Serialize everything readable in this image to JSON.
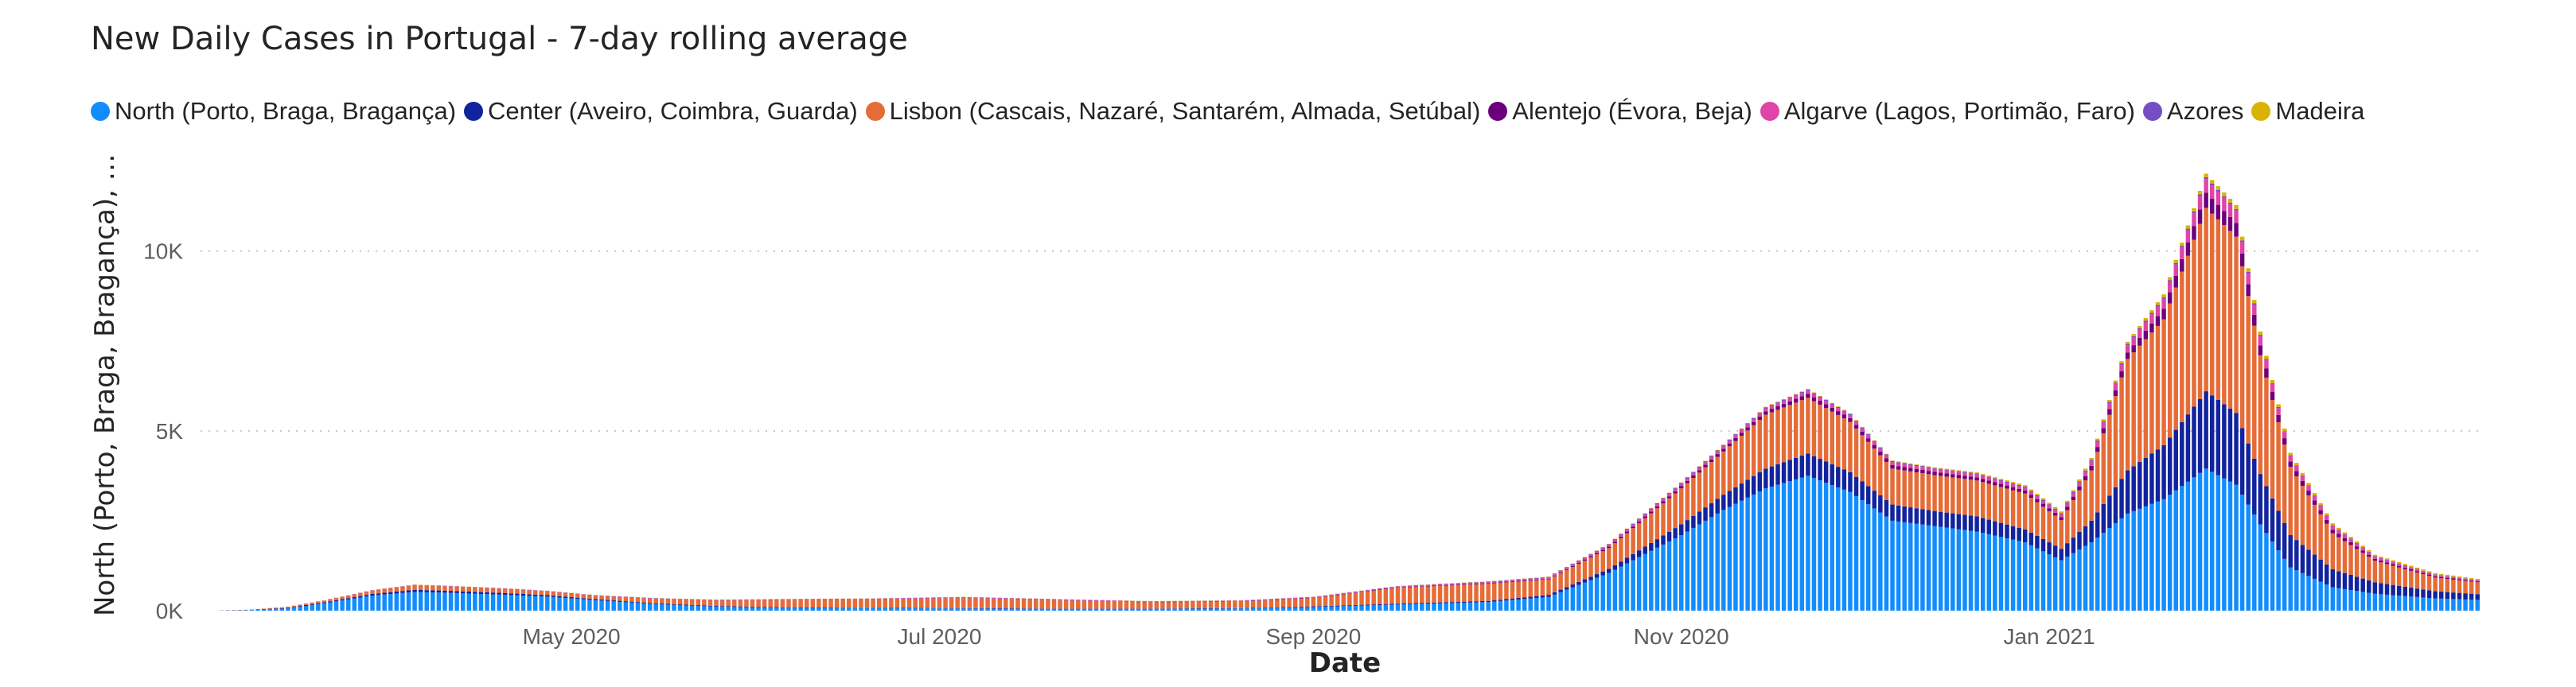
{
  "chart_data": {
    "type": "bar",
    "stacked": true,
    "title": "New Daily Cases in Portugal - 7-day rolling average",
    "xlabel": "Date",
    "ylabel": "North (Porto, Braga, Bragança), Cen...",
    "ylim": [
      0,
      13000
    ],
    "grid": true,
    "legend_position": "top",
    "x_range": [
      "2020-03-01",
      "2021-03-13"
    ],
    "x_ticks": [
      {
        "date": "2020-05-01",
        "label": "May 2020"
      },
      {
        "date": "2020-07-01",
        "label": "Jul 2020"
      },
      {
        "date": "2020-09-01",
        "label": "Sep 2020"
      },
      {
        "date": "2020-11-01",
        "label": "Nov 2020"
      },
      {
        "date": "2021-01-01",
        "label": "Jan 2021"
      }
    ],
    "y_ticks": [
      {
        "value": 0,
        "label": "0K"
      },
      {
        "value": 5000,
        "label": "5K"
      },
      {
        "value": 10000,
        "label": "10K"
      }
    ],
    "series": [
      {
        "name": "North (Porto, Braga, Bragança)",
        "color": "#118DFF",
        "points": [
          [
            "2020-03-01",
            0
          ],
          [
            "2020-03-08",
            10
          ],
          [
            "2020-03-15",
            60
          ],
          [
            "2020-03-22",
            230
          ],
          [
            "2020-03-29",
            420
          ],
          [
            "2020-04-05",
            520
          ],
          [
            "2020-04-10",
            500
          ],
          [
            "2020-04-20",
            440
          ],
          [
            "2020-04-27",
            390
          ],
          [
            "2020-05-05",
            290
          ],
          [
            "2020-05-15",
            180
          ],
          [
            "2020-05-25",
            110
          ],
          [
            "2020-06-05",
            80
          ],
          [
            "2020-06-20",
            70
          ],
          [
            "2020-07-05",
            60
          ],
          [
            "2020-07-20",
            50
          ],
          [
            "2020-08-05",
            50
          ],
          [
            "2020-08-20",
            60
          ],
          [
            "2020-09-01",
            100
          ],
          [
            "2020-09-15",
            170
          ],
          [
            "2020-09-30",
            240
          ],
          [
            "2020-10-10",
            380
          ],
          [
            "2020-10-20",
            1050
          ],
          [
            "2020-11-01",
            2100
          ],
          [
            "2020-11-08",
            2800
          ],
          [
            "2020-11-15",
            3400
          ],
          [
            "2020-11-22",
            3750
          ],
          [
            "2020-11-29",
            3300
          ],
          [
            "2020-12-06",
            2500
          ],
          [
            "2020-12-13",
            2350
          ],
          [
            "2020-12-20",
            2200
          ],
          [
            "2020-12-28",
            1900
          ],
          [
            "2021-01-03",
            1400
          ],
          [
            "2021-01-08",
            1900
          ],
          [
            "2021-01-14",
            2700
          ],
          [
            "2021-01-20",
            3100
          ],
          [
            "2021-01-27",
            3950
          ],
          [
            "2021-02-01",
            3500
          ],
          [
            "2021-02-05",
            2400
          ],
          [
            "2021-02-10",
            1200
          ],
          [
            "2021-02-17",
            650
          ],
          [
            "2021-02-24",
            470
          ],
          [
            "2021-03-06",
            340
          ],
          [
            "2021-03-13",
            300
          ]
        ]
      },
      {
        "name": "Center (Aveiro, Coimbra, Guarda)",
        "color": "#12239E",
        "points": [
          [
            "2020-03-01",
            0
          ],
          [
            "2020-03-10",
            10
          ],
          [
            "2020-03-22",
            30
          ],
          [
            "2020-04-05",
            60
          ],
          [
            "2020-04-20",
            50
          ],
          [
            "2020-05-05",
            30
          ],
          [
            "2020-05-25",
            20
          ],
          [
            "2020-06-20",
            10
          ],
          [
            "2020-08-01",
            10
          ],
          [
            "2020-08-20",
            10
          ],
          [
            "2020-09-01",
            20
          ],
          [
            "2020-09-30",
            30
          ],
          [
            "2020-10-10",
            60
          ],
          [
            "2020-10-20",
            110
          ],
          [
            "2020-11-01",
            300
          ],
          [
            "2020-11-15",
            550
          ],
          [
            "2020-11-22",
            620
          ],
          [
            "2020-11-29",
            550
          ],
          [
            "2020-12-06",
            450
          ],
          [
            "2020-12-13",
            420
          ],
          [
            "2020-12-20",
            420
          ],
          [
            "2020-12-28",
            360
          ],
          [
            "2021-01-03",
            320
          ],
          [
            "2021-01-08",
            600
          ],
          [
            "2021-01-14",
            1200
          ],
          [
            "2021-01-20",
            1500
          ],
          [
            "2021-01-27",
            2150
          ],
          [
            "2021-02-01",
            2000
          ],
          [
            "2021-02-05",
            1400
          ],
          [
            "2021-02-10",
            900
          ],
          [
            "2021-02-17",
            500
          ],
          [
            "2021-02-24",
            320
          ],
          [
            "2021-03-06",
            200
          ],
          [
            "2021-03-13",
            160
          ]
        ]
      },
      {
        "name": "Lisbon (Cascais, Nazaré, Santarém, Almada, Setúbal)",
        "color": "#E66C37",
        "points": [
          [
            "2020-03-01",
            0
          ],
          [
            "2020-03-10",
            10
          ],
          [
            "2020-03-22",
            50
          ],
          [
            "2020-04-05",
            120
          ],
          [
            "2020-04-20",
            110
          ],
          [
            "2020-05-05",
            90
          ],
          [
            "2020-05-25",
            150
          ],
          [
            "2020-06-05",
            200
          ],
          [
            "2020-06-20",
            230
          ],
          [
            "2020-07-05",
            280
          ],
          [
            "2020-07-20",
            230
          ],
          [
            "2020-08-05",
            170
          ],
          [
            "2020-08-20",
            180
          ],
          [
            "2020-09-01",
            230
          ],
          [
            "2020-09-15",
            440
          ],
          [
            "2020-09-30",
            480
          ],
          [
            "2020-10-10",
            430
          ],
          [
            "2020-10-20",
            580
          ],
          [
            "2020-11-01",
            1000
          ],
          [
            "2020-11-08",
            1200
          ],
          [
            "2020-11-15",
            1500
          ],
          [
            "2020-11-22",
            1550
          ],
          [
            "2020-11-29",
            1400
          ],
          [
            "2020-12-06",
            1000
          ],
          [
            "2020-12-13",
            1000
          ],
          [
            "2020-12-20",
            1000
          ],
          [
            "2020-12-28",
            1000
          ],
          [
            "2021-01-03",
            800
          ],
          [
            "2021-01-08",
            1400
          ],
          [
            "2021-01-14",
            3100
          ],
          [
            "2021-01-20",
            3500
          ],
          [
            "2021-01-27",
            5100
          ],
          [
            "2021-02-01",
            4900
          ],
          [
            "2021-02-05",
            3300
          ],
          [
            "2021-02-10",
            1900
          ],
          [
            "2021-02-17",
            1000
          ],
          [
            "2021-02-24",
            600
          ],
          [
            "2021-03-06",
            380
          ],
          [
            "2021-03-13",
            330
          ]
        ]
      },
      {
        "name": "Alentejo (Évora, Beja)",
        "color": "#6B007B",
        "points": [
          [
            "2020-03-01",
            0
          ],
          [
            "2020-04-01",
            5
          ],
          [
            "2020-05-01",
            5
          ],
          [
            "2020-07-01",
            5
          ],
          [
            "2020-09-01",
            10
          ],
          [
            "2020-10-10",
            20
          ],
          [
            "2020-11-01",
            60
          ],
          [
            "2020-11-22",
            110
          ],
          [
            "2020-12-13",
            90
          ],
          [
            "2021-01-03",
            80
          ],
          [
            "2021-01-14",
            180
          ],
          [
            "2021-01-27",
            420
          ],
          [
            "2021-02-01",
            380
          ],
          [
            "2021-02-10",
            150
          ],
          [
            "2021-02-24",
            50
          ],
          [
            "2021-03-13",
            25
          ]
        ]
      },
      {
        "name": "Algarve (Lagos, Portimão, Faro)",
        "color": "#E044A7",
        "points": [
          [
            "2020-03-01",
            0
          ],
          [
            "2020-04-01",
            10
          ],
          [
            "2020-05-01",
            10
          ],
          [
            "2020-07-01",
            20
          ],
          [
            "2020-09-01",
            20
          ],
          [
            "2020-10-10",
            30
          ],
          [
            "2020-11-01",
            70
          ],
          [
            "2020-11-22",
            90
          ],
          [
            "2020-12-13",
            80
          ],
          [
            "2021-01-03",
            80
          ],
          [
            "2021-01-14",
            200
          ],
          [
            "2021-01-27",
            380
          ],
          [
            "2021-02-01",
            350
          ],
          [
            "2021-02-10",
            150
          ],
          [
            "2021-02-24",
            60
          ],
          [
            "2021-03-13",
            30
          ]
        ]
      },
      {
        "name": "Azores",
        "color": "#744EC2",
        "points": [
          [
            "2020-03-01",
            0
          ],
          [
            "2020-04-01",
            5
          ],
          [
            "2020-09-01",
            5
          ],
          [
            "2020-11-01",
            25
          ],
          [
            "2020-11-22",
            30
          ],
          [
            "2020-12-13",
            25
          ],
          [
            "2021-01-14",
            35
          ],
          [
            "2021-01-27",
            50
          ],
          [
            "2021-02-10",
            20
          ],
          [
            "2021-03-13",
            10
          ]
        ]
      },
      {
        "name": "Madeira",
        "color": "#D9B300",
        "points": [
          [
            "2020-03-01",
            0
          ],
          [
            "2020-04-01",
            5
          ],
          [
            "2020-09-01",
            5
          ],
          [
            "2020-11-01",
            10
          ],
          [
            "2020-11-22",
            15
          ],
          [
            "2020-12-13",
            20
          ],
          [
            "2021-01-14",
            60
          ],
          [
            "2021-01-27",
            100
          ],
          [
            "2021-02-01",
            110
          ],
          [
            "2021-02-10",
            70
          ],
          [
            "2021-02-24",
            40
          ],
          [
            "2021-03-13",
            30
          ]
        ]
      }
    ]
  }
}
